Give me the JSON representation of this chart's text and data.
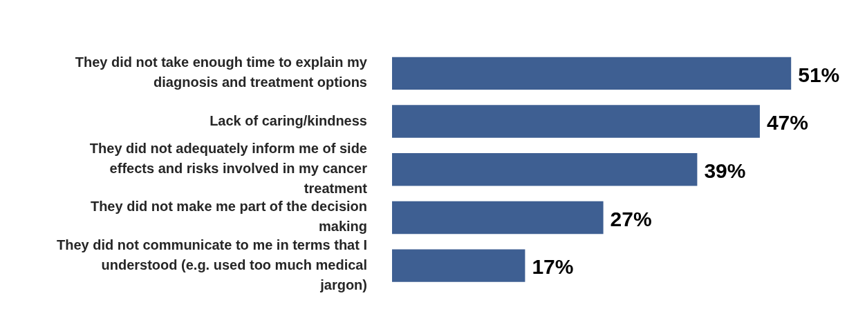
{
  "chart_data": {
    "type": "bar",
    "orientation": "horizontal",
    "categories": [
      "They did not take enough time to explain my diagnosis and treatment options",
      "Lack of caring/kindness",
      "They did not adequately inform me of side effects and risks involved in my cancer treatment",
      "They did not make me part of the decision making",
      "They did not communicate to me in terms that I understood (e.g. used too much medical jargon)"
    ],
    "values": [
      51,
      47,
      39,
      27,
      17
    ],
    "value_labels": [
      "51%",
      "47%",
      "39%",
      "27%",
      "17%"
    ],
    "color": "#3e5f92",
    "legend": false
  }
}
